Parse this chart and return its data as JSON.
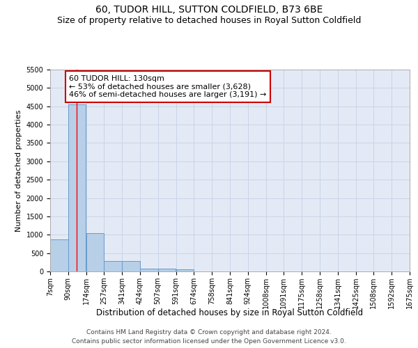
{
  "title": "60, TUDOR HILL, SUTTON COLDFIELD, B73 6BE",
  "subtitle": "Size of property relative to detached houses in Royal Sutton Coldfield",
  "xlabel": "Distribution of detached houses by size in Royal Sutton Coldfield",
  "ylabel": "Number of detached properties",
  "footnote1": "Contains HM Land Registry data © Crown copyright and database right 2024.",
  "footnote2": "Contains public sector information licensed under the Open Government Licence v3.0.",
  "bar_edges": [
    7,
    90,
    174,
    257,
    341,
    424,
    507,
    591,
    674,
    758,
    841,
    924,
    1008,
    1091,
    1175,
    1258,
    1341,
    1425,
    1508,
    1592,
    1675
  ],
  "bar_heights": [
    880,
    4550,
    1050,
    280,
    280,
    80,
    80,
    50,
    0,
    0,
    0,
    0,
    0,
    0,
    0,
    0,
    0,
    0,
    0,
    0
  ],
  "bar_color": "#b8cfe8",
  "bar_edge_color": "#6699cc",
  "red_line_x": 130,
  "annotation_text": "60 TUDOR HILL: 130sqm\n← 53% of detached houses are smaller (3,628)\n46% of semi-detached houses are larger (3,191) →",
  "annotation_box_color": "#cc0000",
  "annotation_bg_color": "#ffffff",
  "ylim": [
    0,
    5500
  ],
  "yticks": [
    0,
    500,
    1000,
    1500,
    2000,
    2500,
    3000,
    3500,
    4000,
    4500,
    5000,
    5500
  ],
  "grid_color": "#c8d4e8",
  "bg_color": "#e4eaf5",
  "title_fontsize": 10,
  "subtitle_fontsize": 9,
  "tick_fontsize": 7,
  "ylabel_fontsize": 8,
  "xlabel_fontsize": 8.5,
  "annotation_fontsize": 8,
  "footnote_fontsize": 6.5
}
